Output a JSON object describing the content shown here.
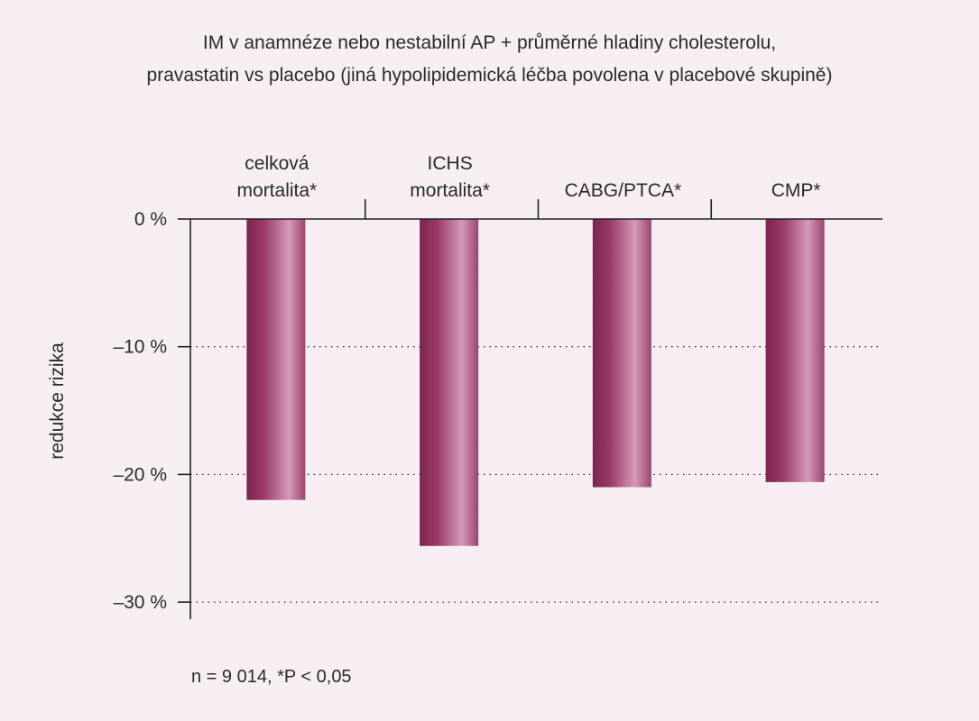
{
  "chart_data": {
    "type": "bar",
    "title": [
      "IM v anamnéze nebo nestabilní AP + průměrné hladiny cholesterolu,",
      "pravastatin vs placebo (jiná hypolipidemická léčba povolena v placebové skupině)"
    ],
    "categories": [
      [
        "celková",
        "mortalita*"
      ],
      [
        "ICHS",
        "mortalita*"
      ],
      [
        "CABG/PTCA*"
      ],
      [
        "CMP*"
      ]
    ],
    "values": [
      -22,
      -25.6,
      -21,
      -20.6
    ],
    "ylabel": "redukce rizika",
    "ylim": [
      -31.5,
      0
    ],
    "yticks": [
      0,
      -10,
      -20,
      -30
    ],
    "ytick_labels": [
      "0 %",
      "–10 %",
      "–20 %",
      "–30 %"
    ],
    "grid": "dotted horizontal at -10, -20, -30",
    "bar_color": "#8e2e5c",
    "bar_highlight": "#d79ab8",
    "footnote": "n = 9 014, *P < 0,05"
  }
}
